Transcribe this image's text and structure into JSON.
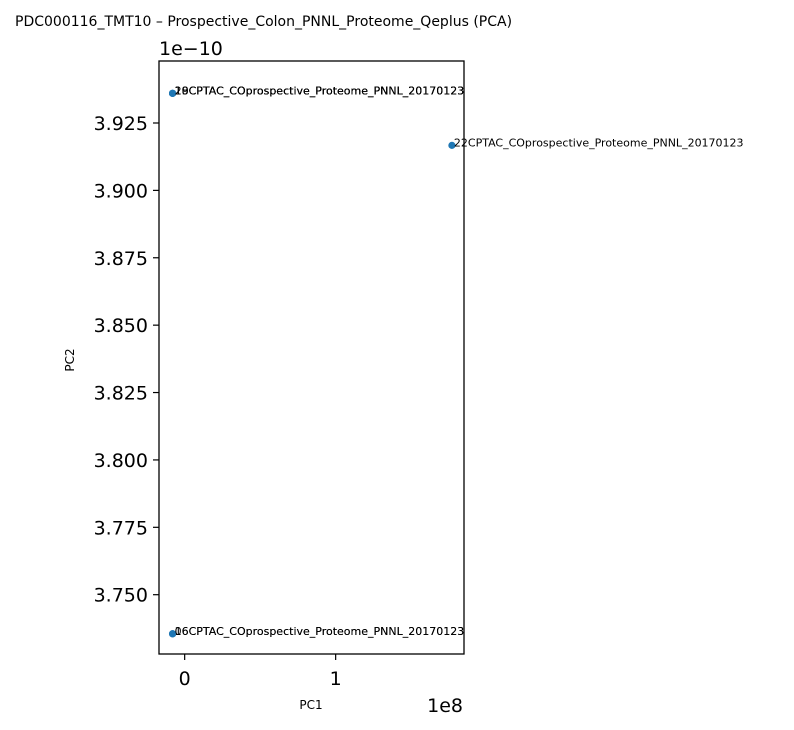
{
  "chart_data": {
    "type": "scatter",
    "title": "PDC000116_TMT10 – Prospective_Colon_PNNL_Proteome_Qeplus (PCA)",
    "xlabel": "PC1",
    "ylabel": "PC2",
    "x_offset_label": "1e8",
    "y_offset_label": "1e−10",
    "xlim": [
      -0.17,
      1.85
    ],
    "ylim": [
      3.728,
      3.948
    ],
    "x_ticks": [
      {
        "value": 0,
        "label": "0"
      },
      {
        "value": 1,
        "label": "1"
      }
    ],
    "y_ticks": [
      {
        "value": 3.75,
        "label": "3.750"
      },
      {
        "value": 3.775,
        "label": "3.775"
      },
      {
        "value": 3.8,
        "label": "3.800"
      },
      {
        "value": 3.825,
        "label": "3.825"
      },
      {
        "value": 3.85,
        "label": "3.850"
      },
      {
        "value": 3.875,
        "label": "3.875"
      },
      {
        "value": 3.9,
        "label": "3.900"
      },
      {
        "value": 3.925,
        "label": "3.925"
      }
    ],
    "grid": false,
    "point_color": "#1f77b4",
    "points": [
      {
        "x": -0.08,
        "y": 3.936,
        "label": "18CPTAC_COprospective_Proteome_PNNL_20170123"
      },
      {
        "x": -0.08,
        "y": 3.936,
        "label": "19CPTAC_COprospective_Proteome_PNNL_20170123"
      },
      {
        "x": -0.08,
        "y": 3.936,
        "label": "20CPTAC_COprospective_Proteome_PNNL_20170123"
      },
      {
        "x": 1.77,
        "y": 3.9167,
        "label": "22CPTAC_COprospective_Proteome_PNNL_20170123"
      },
      {
        "x": -0.08,
        "y": 3.7355,
        "label": "06CPTAC_COprospective_Proteome_PNNL_20170123"
      },
      {
        "x": -0.08,
        "y": 3.7355,
        "label": "16CPTAC_COprospective_Proteome_PNNL_20170123"
      }
    ]
  }
}
